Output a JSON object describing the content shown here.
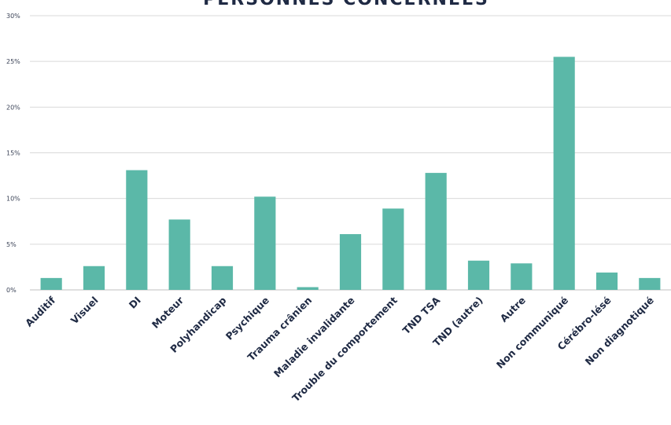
{
  "chart_data": {
    "type": "bar",
    "title": "PERSONNES CONCERNÉES",
    "categories": [
      "Auditif",
      "Visuel",
      "DI",
      "Moteur",
      "Polyhandicap",
      "Psychique",
      "Trauma crânien",
      "Maladie invalidante",
      "Trouble du comportement",
      "TND TSA",
      "TND (autre)",
      "Autre",
      "Non communiqué",
      "Cérébro-lésé",
      "Non diagnotiqué"
    ],
    "values": [
      1.3,
      2.6,
      13.1,
      7.7,
      2.6,
      10.2,
      0.3,
      6.1,
      8.9,
      12.8,
      3.2,
      2.9,
      25.5,
      1.9,
      1.3
    ],
    "ylim": [
      0,
      30
    ],
    "yticks": [
      "0%",
      "5%",
      "10%",
      "15%",
      "20%",
      "25%",
      "30%"
    ],
    "xlabel": "",
    "ylabel": "",
    "grid": true,
    "bar_color": "#5bb8a8"
  }
}
